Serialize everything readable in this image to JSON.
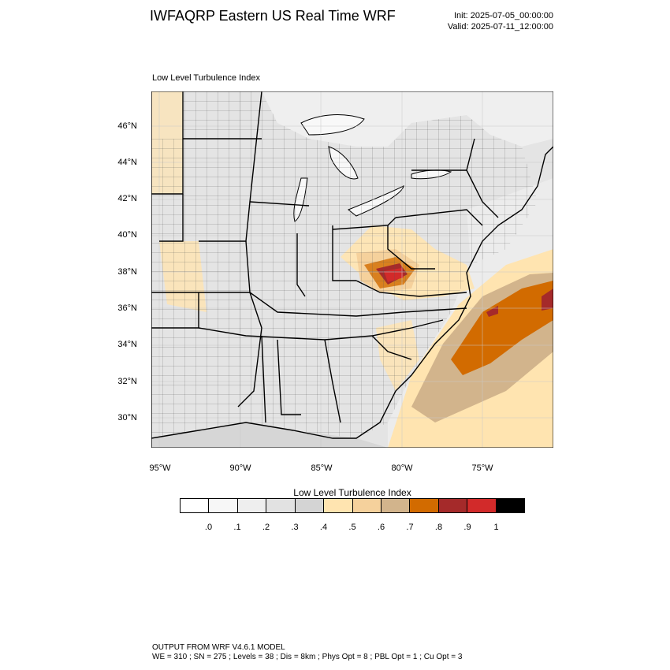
{
  "header": {
    "title": "IWFAQRP Eastern US Real Time WRF",
    "init": "Init: 2025-07-05_00:00:00",
    "valid": "Valid: 2025-07-11_12:00:00"
  },
  "map": {
    "subtitle": "Low Level Turbulence Index",
    "lat_labels": [
      "46°N",
      "44°N",
      "42°N",
      "40°N",
      "38°N",
      "36°N",
      "34°N",
      "32°N",
      "30°N"
    ],
    "lon_labels": [
      "95°W",
      "90°W",
      "85°W",
      "80°W",
      "75°W"
    ]
  },
  "colorbar": {
    "title": "Low Level Turbulence Index",
    "colors": [
      "#ffffff",
      "#f7f7f7",
      "#eeeeee",
      "#e2e2e2",
      "#d4d4d4",
      "#ffe4b0",
      "#f5d19c",
      "#d2b48c",
      "#d26b00",
      "#a52a2a",
      "#d22a2a",
      "#000000"
    ],
    "labels": [
      ".0",
      ".1",
      ".2",
      ".3",
      ".4",
      ".5",
      ".6",
      ".7",
      ".8",
      ".9",
      "1"
    ]
  },
  "footer": {
    "line1": "OUTPUT FROM WRF V4.6.1 MODEL",
    "line2": "WE = 310 ; SN = 275 ; Levels = 38 ; Dis = 8km ; Phys Opt = 8 ; PBL Opt = 1 ; Cu Opt = 3"
  }
}
